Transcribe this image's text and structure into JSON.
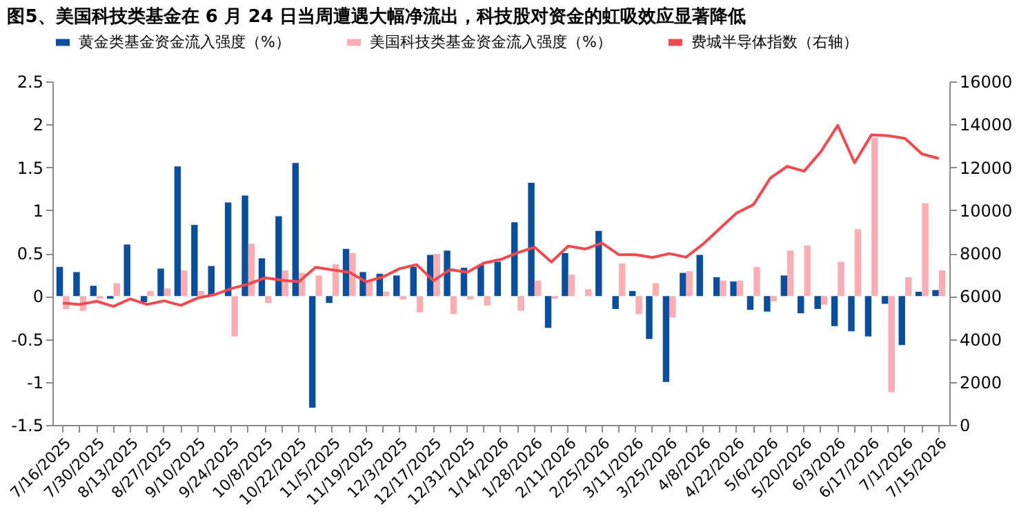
{
  "chart_data": {
    "type": "bar",
    "title": "图5、美国科技类基金在 6 月 24 日当周遭遇大幅净流出，科技股对资金的虹吸效应显著降低",
    "categories": [
      "7/16/2025",
      null,
      "7/30/2025",
      null,
      "8/13/2025",
      null,
      "8/27/2025",
      null,
      "9/10/2025",
      null,
      "9/24/2025",
      null,
      "10/8/2025",
      null,
      "10/22/2025",
      null,
      "11/5/2025",
      null,
      "11/19/2025",
      null,
      "12/3/2025",
      null,
      "12/17/2025",
      null,
      "12/31/2025",
      null,
      "1/14/2026",
      null,
      "1/28/2026",
      null,
      "2/11/2026",
      null,
      "2/25/2026",
      null,
      "3/11/2026",
      null,
      "3/25/2026",
      null,
      "4/8/2026",
      null,
      "4/22/2026",
      null,
      "5/6/2026",
      null,
      "5/20/2026",
      null,
      "6/3/2026",
      null,
      "6/17/2026",
      null,
      "7/1/2026",
      null,
      "7/15/2026"
    ],
    "series": [
      {
        "name": "黄金类基金资金流入强度（%）",
        "color": "#0b4f9c",
        "values": [
          0.34,
          0.28,
          0.12,
          -0.03,
          0.6,
          -0.07,
          0.32,
          1.51,
          0.83,
          0.35,
          1.09,
          1.17,
          0.44,
          0.93,
          1.55,
          -1.3,
          -0.08,
          0.55,
          0.28,
          0.26,
          0.24,
          0.34,
          0.48,
          0.53,
          0.33,
          0.36,
          0.4,
          0.86,
          1.32,
          -0.37,
          0.5,
          0,
          0.76,
          -0.15,
          0.06,
          -0.5,
          -1.0,
          0.27,
          0.48,
          0.22,
          0.17,
          -0.16,
          -0.18,
          0.24,
          -0.2,
          -0.15,
          -0.35,
          -0.41,
          -0.47,
          -0.09,
          -0.57,
          0.05,
          0.07
        ]
      },
      {
        "name": "美国科技类基金资金流入强度（%）",
        "color": "#f8aeb3",
        "values": [
          -0.15,
          -0.17,
          -0.03,
          0.15,
          0,
          0.06,
          0.09,
          0.3,
          0.06,
          0,
          -0.47,
          0.61,
          -0.08,
          0.3,
          0.27,
          0.24,
          0.37,
          0.5,
          0.18,
          0.05,
          -0.04,
          -0.19,
          0.49,
          -0.21,
          -0.04,
          -0.11,
          0,
          -0.17,
          0.18,
          -0.03,
          0.25,
          0.08,
          null,
          0.38,
          -0.21,
          0.15,
          -0.25,
          0.29,
          0,
          0.18,
          0.18,
          0.34,
          -0.06,
          0.53,
          0.59,
          -0.1,
          0.4,
          0.78,
          1.84,
          -1.12,
          0.22,
          1.08,
          0.3
        ]
      },
      {
        "name": "费城半导体指数（右轴）",
        "type": "line",
        "axis": "y2",
        "color": "#f04a4f",
        "values": [
          5680,
          5610,
          5760,
          5520,
          5870,
          5610,
          5780,
          5570,
          5910,
          6070,
          6350,
          6560,
          6850,
          6740,
          6670,
          7340,
          7220,
          7110,
          6670,
          6890,
          7280,
          7460,
          6720,
          7240,
          7110,
          7540,
          7710,
          8020,
          8280,
          7590,
          8330,
          8190,
          8470,
          7930,
          7930,
          7800,
          7980,
          7810,
          8420,
          9150,
          9870,
          10260,
          11500,
          12040,
          11820,
          12730,
          13950,
          12210,
          13510,
          13470,
          13340,
          12620,
          12410
        ]
      }
    ],
    "ylim": [
      -1.5,
      2.5
    ],
    "yticks": [
      -1.5,
      -1,
      -0.5,
      0,
      0.5,
      1,
      1.5,
      2,
      2.5
    ],
    "y2lim": [
      0,
      16000
    ],
    "y2ticks": [
      0,
      2000,
      4000,
      6000,
      8000,
      10000,
      12000,
      14000,
      16000
    ],
    "grid": false,
    "legend": "top",
    "marker": "none"
  }
}
